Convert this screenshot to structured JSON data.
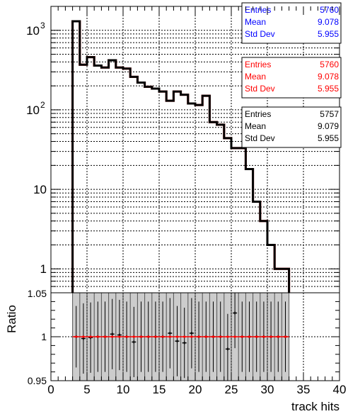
{
  "chart_data": [
    {
      "type": "histogram",
      "panel": "upper",
      "log_y": true,
      "grid": true,
      "xlim": [
        0,
        40
      ],
      "ylim": [
        0.5,
        2000
      ],
      "y_ticks": [
        {
          "value": 1,
          "label": "1"
        },
        {
          "value": 10,
          "label": "10"
        },
        {
          "value": 100,
          "label": "10",
          "exp": "2"
        },
        {
          "value": 1000,
          "label": "10",
          "exp": "3"
        }
      ],
      "x": [
        0,
        1,
        2,
        3,
        4,
        5,
        6,
        7,
        8,
        9,
        10,
        11,
        12,
        13,
        14,
        15,
        16,
        17,
        18,
        19,
        20,
        21,
        22,
        23,
        24,
        25,
        26,
        27,
        28,
        29,
        30,
        31,
        32,
        33,
        34,
        35,
        36,
        37,
        38,
        39
      ],
      "series": [
        {
          "color": "#000000",
          "values": [
            0,
            0,
            0,
            1300,
            370,
            460,
            360,
            340,
            420,
            340,
            330,
            260,
            220,
            195,
            185,
            170,
            130,
            170,
            155,
            120,
            115,
            150,
            70,
            65,
            44,
            33,
            33,
            18,
            7,
            4,
            2,
            1,
            1,
            0,
            0,
            0,
            0,
            0,
            0,
            0
          ]
        },
        {
          "color": "#ff0000",
          "values": [
            0,
            0,
            0,
            1300,
            370,
            460,
            360,
            340,
            420,
            340,
            330,
            260,
            220,
            195,
            185,
            170,
            130,
            170,
            155,
            120,
            115,
            150,
            70,
            65,
            44,
            33,
            33,
            18,
            7,
            4,
            2,
            1,
            1,
            0,
            0,
            0,
            0,
            0,
            0,
            0
          ]
        },
        {
          "color": "#0000ff",
          "values": [
            0,
            0,
            0,
            1300,
            370,
            460,
            360,
            340,
            420,
            340,
            330,
            260,
            220,
            195,
            185,
            170,
            130,
            170,
            155,
            120,
            115,
            150,
            70,
            65,
            44,
            33,
            33,
            18,
            7,
            4,
            2,
            1,
            1,
            0,
            0,
            0,
            0,
            0,
            0,
            0
          ]
        }
      ],
      "stats_boxes": [
        {
          "color": "#0000ff",
          "rows": [
            [
              "Entries",
              "5760"
            ],
            [
              "Mean",
              "9.078"
            ],
            [
              "Std Dev",
              "5.955"
            ]
          ]
        },
        {
          "color": "#ff0000",
          "rows": [
            [
              "Entries",
              "5760"
            ],
            [
              "Mean",
              "9.078"
            ],
            [
              "Std Dev",
              "5.955"
            ]
          ]
        },
        {
          "color": "#000000",
          "rows": [
            [
              "Entries",
              "5757"
            ],
            [
              "Mean",
              "9.079"
            ],
            [
              "Std Dev",
              "5.955"
            ]
          ]
        }
      ]
    },
    {
      "type": "scatter",
      "panel": "lower",
      "ylabel": "Ratio",
      "xlabel": "track hits",
      "xlim": [
        0,
        40
      ],
      "ylim": [
        0.95,
        1.05
      ],
      "y_ticks": [
        {
          "value": 0.95,
          "label": "0.95"
        },
        {
          "value": 1,
          "label": "1"
        },
        {
          "value": 1.05,
          "label": "1.05"
        }
      ],
      "x_ticks": [
        {
          "value": 0,
          "label": "0"
        },
        {
          "value": 5,
          "label": "5"
        },
        {
          "value": 10,
          "label": "10"
        },
        {
          "value": 15,
          "label": "15"
        },
        {
          "value": 20,
          "label": "20"
        },
        {
          "value": 25,
          "label": "25"
        },
        {
          "value": 30,
          "label": "30"
        },
        {
          "value": 35,
          "label": "35"
        },
        {
          "value": 40,
          "label": "40"
        }
      ],
      "band": {
        "x_min": 3,
        "x_max": 33,
        "y_min": 0.95,
        "y_max": 1.05,
        "color": "#cccccc",
        "x_min_first": 3.5
      },
      "series": [
        {
          "color": "#000000",
          "x": [
            3.5,
            4.5,
            5.5,
            6.5,
            7.5,
            8.5,
            9.5,
            10.5,
            11.5,
            12.5,
            13.5,
            14.5,
            15.5,
            16.5,
            17.5,
            18.5,
            19.5,
            20.5,
            21.5,
            22.5,
            23.5,
            24.5,
            25.5,
            26.5,
            27.5,
            28.5,
            29.5,
            30.5,
            31.5,
            32.5
          ],
          "values": [
            1.0,
            0.998,
            0.999,
            1.0,
            1.0,
            1.003,
            1.002,
            1.0,
            0.994,
            1.0,
            1.0,
            1.0,
            1.0,
            1.004,
            0.995,
            0.993,
            1.004,
            1.0,
            1.0,
            1.0,
            1.0,
            0.986,
            1.027,
            1.0,
            1.0,
            1.0,
            1.0,
            1.0,
            1.0,
            1.0
          ],
          "err": [
            0.035,
            0.04,
            0.04,
            0.04,
            0.04,
            0.04,
            0.04,
            0.04,
            0.04,
            0.04,
            0.04,
            0.04,
            0.04,
            0.04,
            0.04,
            0.04,
            0.04,
            0.04,
            0.04,
            0.04,
            0.04,
            0.04,
            0.04,
            0.04,
            0.04,
            0.04,
            0.04,
            0.04,
            0.04,
            0.04
          ]
        },
        {
          "color": "#ff0000",
          "x": [
            3.5,
            4.5,
            5.5,
            6.5,
            7.5,
            8.5,
            9.5,
            10.5,
            11.5,
            12.5,
            13.5,
            14.5,
            15.5,
            16.5,
            17.5,
            18.5,
            19.5,
            20.5,
            21.5,
            22.5,
            23.5,
            24.5,
            25.5,
            26.5,
            27.5,
            28.5,
            29.5,
            30.5,
            31.5,
            32.5
          ],
          "values": [
            1,
            1,
            1,
            1,
            1,
            1,
            1,
            1,
            1,
            1,
            1,
            1,
            1,
            1,
            1,
            1,
            1,
            1,
            1,
            1,
            1,
            1,
            1,
            1,
            1,
            1,
            1,
            1,
            1,
            1
          ]
        }
      ]
    }
  ]
}
